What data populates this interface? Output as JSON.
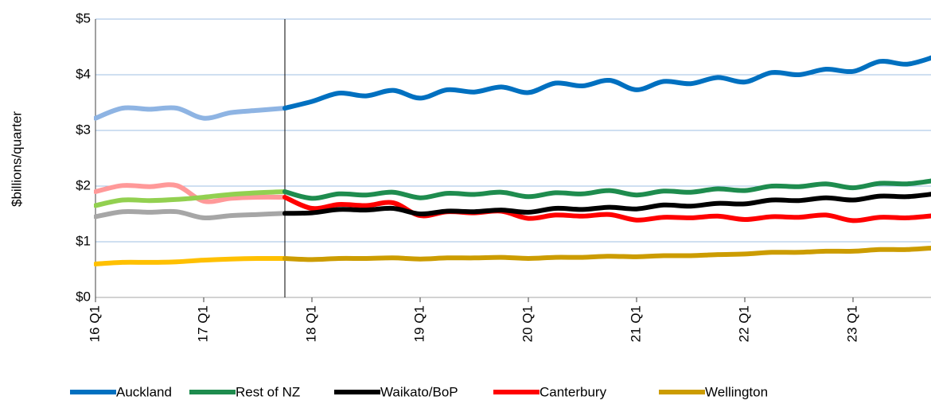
{
  "chart_data": {
    "type": "line",
    "y_label": "$billions/quarter",
    "categories": [
      "16 Q1",
      null,
      null,
      null,
      "17 Q1",
      null,
      null,
      null,
      "18 Q1",
      null,
      null,
      null,
      "19 Q1",
      null,
      null,
      null,
      "20 Q1",
      null,
      null,
      null,
      "21 Q1",
      null,
      null,
      null,
      "22 Q1",
      null,
      null,
      null,
      "23 Q1",
      null,
      null,
      null
    ],
    "divider_index": 7,
    "ylim": [
      0,
      5
    ],
    "yticks": [
      {
        "value": 0,
        "label": "$0"
      },
      {
        "value": 1,
        "label": "$1"
      },
      {
        "value": 2,
        "label": "$2"
      },
      {
        "value": 3,
        "label": "$3"
      },
      {
        "value": 4,
        "label": "$4"
      },
      {
        "value": 5,
        "label": "$5"
      }
    ],
    "grid": true,
    "legend": "bottom",
    "series": [
      {
        "name": "Auckland",
        "color": "#0070c0",
        "history_color": "#8eb4e3",
        "values": [
          3.22,
          3.4,
          3.38,
          3.4,
          3.22,
          3.32,
          3.36,
          3.4,
          3.52,
          3.67,
          3.62,
          3.72,
          3.58,
          3.73,
          3.69,
          3.78,
          3.68,
          3.85,
          3.8,
          3.9,
          3.73,
          3.88,
          3.84,
          3.95,
          3.87,
          4.04,
          4.0,
          4.1,
          4.06,
          4.24,
          4.19,
          4.32
        ]
      },
      {
        "name": "Rest of NZ",
        "color": "#1e8c4e",
        "history_color": "#92d050",
        "values": [
          1.65,
          1.75,
          1.74,
          1.76,
          1.8,
          1.85,
          1.88,
          1.9,
          1.78,
          1.86,
          1.84,
          1.89,
          1.79,
          1.87,
          1.85,
          1.89,
          1.81,
          1.88,
          1.86,
          1.92,
          1.84,
          1.91,
          1.89,
          1.95,
          1.92,
          2.0,
          1.99,
          2.04,
          1.97,
          2.05,
          2.04,
          2.1
        ]
      },
      {
        "name": "Waikato/BoP",
        "color": "#000000",
        "history_color": "#a6a6a6",
        "values": [
          1.45,
          1.54,
          1.53,
          1.54,
          1.43,
          1.47,
          1.49,
          1.51,
          1.52,
          1.58,
          1.57,
          1.6,
          1.5,
          1.55,
          1.54,
          1.57,
          1.53,
          1.6,
          1.58,
          1.62,
          1.59,
          1.66,
          1.64,
          1.69,
          1.68,
          1.75,
          1.74,
          1.79,
          1.75,
          1.82,
          1.81,
          1.86
        ]
      },
      {
        "name": "Canterbury",
        "color": "#ff0000",
        "history_color": "#ff9999",
        "values": [
          1.9,
          2.01,
          1.99,
          2.01,
          1.73,
          1.78,
          1.8,
          1.8,
          1.6,
          1.67,
          1.65,
          1.7,
          1.47,
          1.54,
          1.52,
          1.55,
          1.42,
          1.48,
          1.46,
          1.49,
          1.39,
          1.44,
          1.43,
          1.46,
          1.4,
          1.45,
          1.44,
          1.48,
          1.38,
          1.44,
          1.43,
          1.47
        ]
      },
      {
        "name": "Wellington",
        "color": "#cc9c00",
        "history_color": "#ffc000",
        "values": [
          0.6,
          0.63,
          0.63,
          0.64,
          0.67,
          0.69,
          0.7,
          0.7,
          0.68,
          0.7,
          0.7,
          0.71,
          0.69,
          0.71,
          0.71,
          0.72,
          0.7,
          0.72,
          0.72,
          0.74,
          0.73,
          0.75,
          0.75,
          0.77,
          0.78,
          0.81,
          0.81,
          0.83,
          0.83,
          0.86,
          0.86,
          0.89
        ]
      }
    ]
  }
}
